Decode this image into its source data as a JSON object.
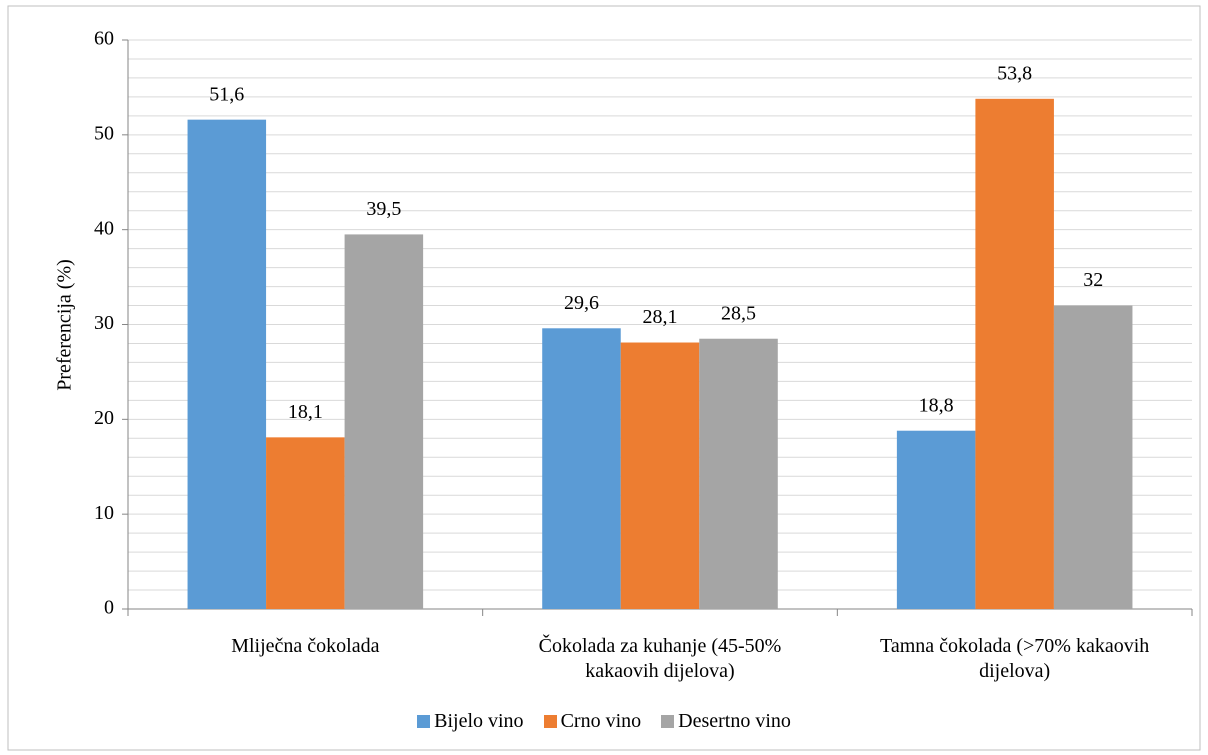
{
  "chart_data": {
    "type": "bar",
    "ylabel": "Preferencija (%)",
    "categories": [
      "Mliječna čokolada",
      "Čokolada za kuhanje (45-50% kakaovih dijelova)",
      "Tamna čokolada (>70% kakaovih dijelova)"
    ],
    "series": [
      {
        "name": "Bijelo vino",
        "color": "#5b9bd5",
        "values": [
          51.6,
          29.6,
          18.8
        ],
        "value_labels": [
          "51,6",
          "29,6",
          "18,8"
        ]
      },
      {
        "name": "Crno vino",
        "color": "#ed7d31",
        "values": [
          18.1,
          28.1,
          53.8
        ],
        "value_labels": [
          "18,1",
          "28,1",
          "53,8"
        ]
      },
      {
        "name": "Desertno vino",
        "color": "#a5a5a5",
        "values": [
          39.5,
          28.5,
          32
        ],
        "value_labels": [
          "39,5",
          "28,5",
          "32"
        ]
      }
    ],
    "ylim": [
      0,
      60
    ],
    "yticks": [
      0,
      10,
      20,
      30,
      40,
      50,
      60
    ],
    "grid": true,
    "legend": "bottom"
  }
}
